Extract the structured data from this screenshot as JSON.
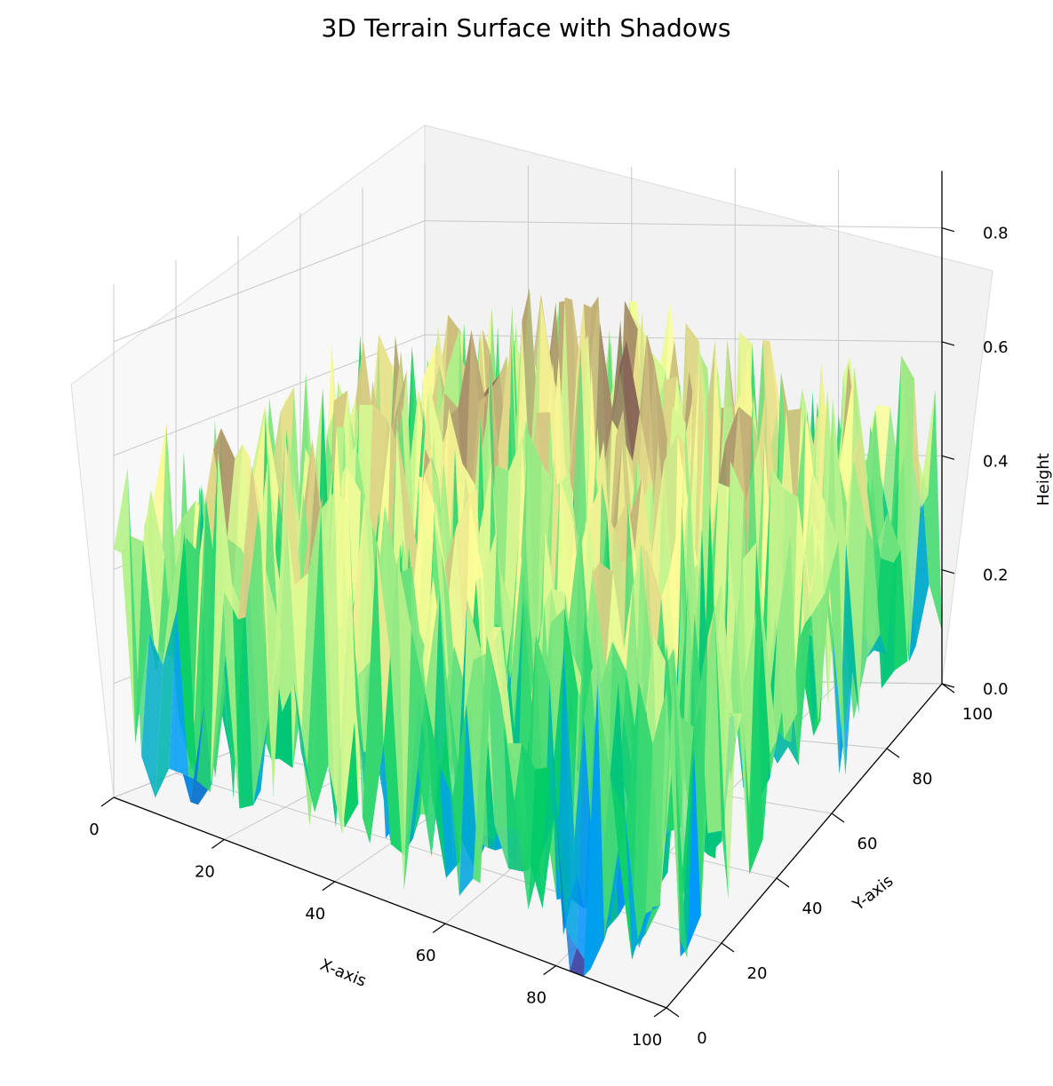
{
  "chart_data": {
    "type": "surface3d",
    "title": "3D Terrain Surface with Shadows",
    "xlabel": "X-axis",
    "ylabel": "Y-axis",
    "zlabel": "Height",
    "xlim": [
      0,
      100
    ],
    "ylim": [
      0,
      100
    ],
    "zlim": [
      0,
      0.9
    ],
    "xticks": [
      "0",
      "20",
      "40",
      "60",
      "80",
      "100"
    ],
    "yticks": [
      "0",
      "20",
      "40",
      "60",
      "80",
      "100"
    ],
    "zticks": [
      "0.0",
      "0.2",
      "0.4",
      "0.6",
      "0.8"
    ],
    "colormap": "terrain",
    "surface_note": "noisy terrain heights, roughly 0.0 to 0.9",
    "grid": true
  }
}
